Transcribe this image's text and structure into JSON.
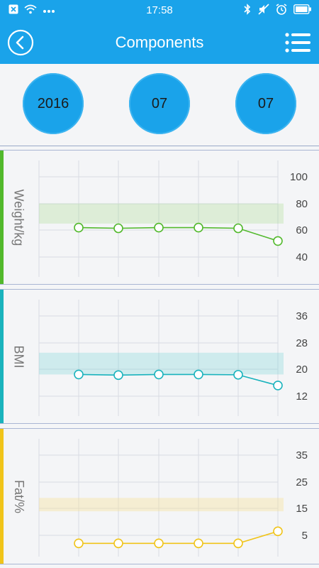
{
  "status_bar": {
    "time": "17:58",
    "left_icons": [
      "notification-x-icon",
      "wifi-icon",
      "more-dots-icon"
    ],
    "right_icons": [
      "bluetooth-icon",
      "mute-icon",
      "alarm-icon",
      "battery-icon"
    ]
  },
  "header": {
    "title": "Components",
    "back_icon": "back-circle-icon",
    "menu_icon": "list-menu-icon"
  },
  "date_selector": {
    "year": "2016",
    "month": "07",
    "day": "07"
  },
  "colors": {
    "primary": "#1aa3ea",
    "weight": "#52b92c",
    "bmi": "#1ab3bd",
    "fat": "#f0c419"
  },
  "chart_data": [
    {
      "type": "line",
      "ylabel": "Weight/kg",
      "yticks": [
        "100",
        "80",
        "60",
        "40"
      ],
      "ylim": [
        20,
        100
      ],
      "band": [
        65,
        80
      ],
      "values": [
        62,
        61.5,
        62,
        62,
        61.5,
        52
      ],
      "grid": true
    },
    {
      "type": "line",
      "ylabel": "BMI",
      "yticks": [
        "36",
        "28",
        "20",
        "12"
      ],
      "ylim": [
        4,
        36
      ],
      "band": [
        18.5,
        25
      ],
      "values": [
        18.5,
        18.3,
        18.5,
        18.5,
        18.4,
        15.2
      ],
      "grid": true
    },
    {
      "type": "line",
      "ylabel": "Fat/%",
      "yticks": [
        "35",
        "25",
        "15",
        "5"
      ],
      "ylim": [
        -5,
        35
      ],
      "band": [
        14,
        19
      ],
      "values": [
        2,
        2,
        2,
        2,
        2,
        6.5
      ],
      "grid": true
    }
  ]
}
